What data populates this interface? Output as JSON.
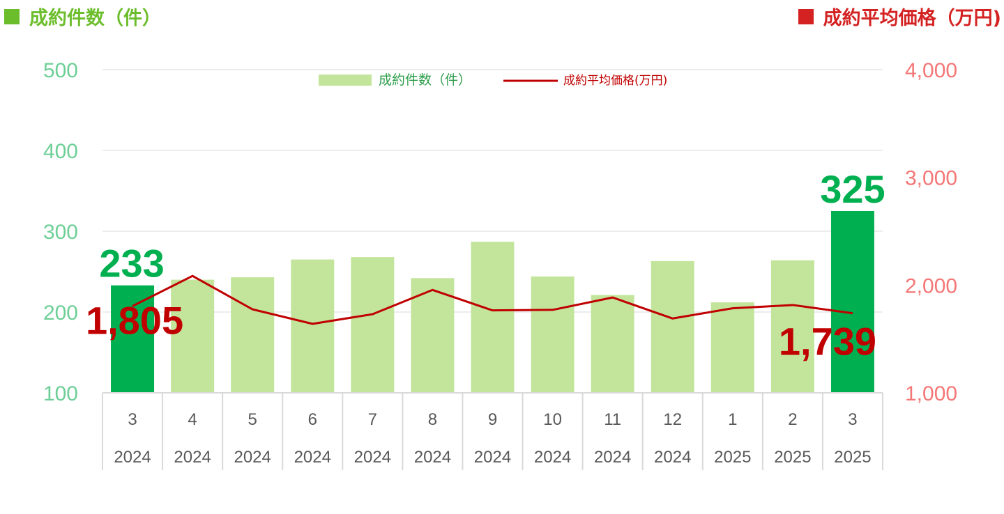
{
  "header": {
    "left_title": "成約件数（件）",
    "right_title": "成約平均価格（万円)"
  },
  "colors": {
    "bar": "#c3e59b",
    "bar_highlight": "#00b050",
    "line": "#c00000",
    "left_axis": "#6dcf96",
    "right_axis": "#f47676",
    "left_title": "#6bbd2b",
    "right_title": "#d42222",
    "grid": "#d9d9d9",
    "x_tick": "#595959"
  },
  "chart_data": {
    "type": "bar",
    "categories": [
      "3",
      "4",
      "5",
      "6",
      "7",
      "8",
      "9",
      "10",
      "11",
      "12",
      "1",
      "2",
      "3"
    ],
    "years": [
      "2024",
      "2024",
      "2024",
      "2024",
      "2024",
      "2024",
      "2024",
      "2024",
      "2024",
      "2024",
      "2025",
      "2025",
      "2025"
    ],
    "series": [
      {
        "name": "成約件数（件）",
        "type": "bar",
        "axis": "left",
        "values": [
          233,
          240,
          243,
          265,
          268,
          242,
          287,
          244,
          221,
          263,
          212,
          264,
          325
        ],
        "highlight_index": [
          0,
          12
        ]
      },
      {
        "name": "成約平均価格(万円)",
        "type": "line",
        "axis": "right",
        "values": [
          1805,
          2085,
          1775,
          1640,
          1730,
          1955,
          1765,
          1770,
          1885,
          1690,
          1785,
          1815,
          1739
        ]
      }
    ],
    "y_left": {
      "min": 100,
      "max": 500,
      "ticks": [
        "100",
        "200",
        "300",
        "400",
        "500"
      ]
    },
    "y_right": {
      "min": 1000,
      "max": 4000,
      "ticks": [
        "1,000",
        "2,000",
        "3,000",
        "4,000"
      ]
    },
    "data_labels": [
      {
        "series": 0,
        "index": 0,
        "text": "233"
      },
      {
        "series": 0,
        "index": 12,
        "text": "325"
      },
      {
        "series": 1,
        "index": 0,
        "text": "1,805"
      },
      {
        "series": 1,
        "index": 12,
        "text": "1,739"
      }
    ],
    "legend": {
      "position": "top-center"
    },
    "grid": true
  }
}
